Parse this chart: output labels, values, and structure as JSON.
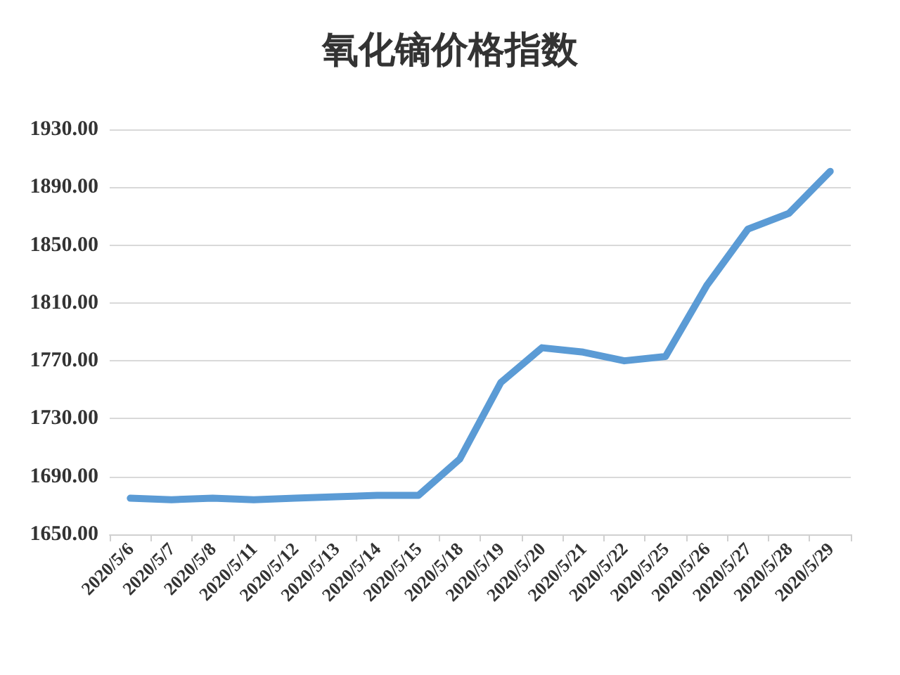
{
  "chart_data": {
    "type": "line",
    "title": "氧化镝价格指数",
    "categories": [
      "2020/5/6",
      "2020/5/7",
      "2020/5/8",
      "2020/5/11",
      "2020/5/12",
      "2020/5/13",
      "2020/5/14",
      "2020/5/15",
      "2020/5/18",
      "2020/5/19",
      "2020/5/20",
      "2020/5/21",
      "2020/5/22",
      "2020/5/25",
      "2020/5/26",
      "2020/5/27",
      "2020/5/28",
      "2020/5/29"
    ],
    "series": [
      {
        "color": "#5b9bd5",
        "values": [
          1675,
          1674,
          1675,
          1674,
          1675,
          1676,
          1677,
          1677,
          1702,
          1755,
          1779,
          1776,
          1770,
          1773,
          1822,
          1861,
          1872,
          1901
        ]
      }
    ],
    "ylim": [
      1650,
      1930
    ],
    "yticks": [
      {
        "value": 1650,
        "label": "1650.00"
      },
      {
        "value": 1690,
        "label": "1690.00"
      },
      {
        "value": 1730,
        "label": "1730.00"
      },
      {
        "value": 1770,
        "label": "1770.00"
      },
      {
        "value": 1810,
        "label": "1810.00"
      },
      {
        "value": 1850,
        "label": "1850.00"
      },
      {
        "value": 1890,
        "label": "1890.00"
      },
      {
        "value": 1930,
        "label": "1930.00"
      }
    ],
    "grid": "y",
    "marker": "none",
    "line_style": "solid"
  }
}
